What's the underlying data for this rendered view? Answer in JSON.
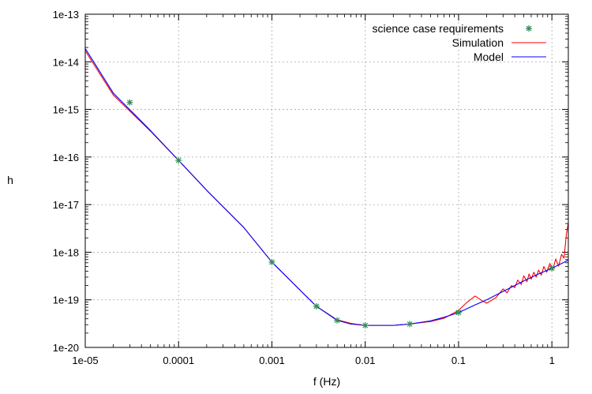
{
  "chart_data": {
    "type": "line",
    "title": "",
    "xlabel": "f (Hz)",
    "ylabel": "h",
    "x_scale": "log",
    "y_scale": "log",
    "xlim": [
      1e-05,
      1.5
    ],
    "ylim": [
      1e-20,
      1e-13
    ],
    "grid": true,
    "legend_position": "top-right",
    "x_ticks": [
      {
        "value": 1e-05,
        "label": "1e-05"
      },
      {
        "value": 0.0001,
        "label": "0.0001"
      },
      {
        "value": 0.001,
        "label": "0.001"
      },
      {
        "value": 0.01,
        "label": "0.01"
      },
      {
        "value": 0.1,
        "label": "0.1"
      },
      {
        "value": 1,
        "label": "1"
      }
    ],
    "y_ticks": [
      {
        "value": 1e-20,
        "label": "1e-20"
      },
      {
        "value": 1e-19,
        "label": "1e-19"
      },
      {
        "value": 1e-18,
        "label": "1e-18"
      },
      {
        "value": 1e-17,
        "label": "1e-17"
      },
      {
        "value": 1e-16,
        "label": "1e-16"
      },
      {
        "value": 1e-15,
        "label": "1e-15"
      },
      {
        "value": 1e-14,
        "label": "1e-14"
      },
      {
        "value": 1e-13,
        "label": "1e-13"
      }
    ],
    "series": [
      {
        "name": "science case requirements",
        "kind": "points",
        "color": "#2e8b57",
        "marker": "asterisk",
        "x": [
          3e-05,
          0.0001,
          0.001,
          0.003,
          0.005,
          0.01,
          0.03,
          0.1,
          1
        ],
        "y": [
          1.4e-15,
          8.5e-17,
          6.2e-19,
          7.3e-20,
          3.7e-20,
          2.9e-20,
          3.1e-20,
          5.4e-20,
          4.6e-19
        ]
      },
      {
        "name": "Simulation",
        "kind": "line",
        "color": "#ff0000",
        "x": [
          1e-05,
          2e-05,
          5e-05,
          0.0001,
          0.0002,
          0.0005,
          0.001,
          0.002,
          0.003,
          0.005,
          0.007,
          0.01,
          0.02,
          0.03,
          0.05,
          0.07,
          0.1,
          0.12,
          0.15,
          0.18,
          0.2,
          0.25,
          0.3,
          0.33,
          0.37,
          0.4,
          0.43,
          0.47,
          0.5,
          0.54,
          0.57,
          0.6,
          0.64,
          0.68,
          0.72,
          0.77,
          0.82,
          0.88,
          0.95,
          1.02,
          1.1,
          1.18,
          1.27,
          1.35,
          1.43,
          1.5
        ],
        "y": [
          1.7e-14,
          2e-15,
          3.5e-16,
          8.5e-17,
          2e-17,
          3.3e-18,
          6.2e-19,
          1.6e-19,
          7.3e-20,
          3.8e-20,
          3.2e-20,
          2.9e-20,
          2.9e-20,
          3.1e-20,
          3.5e-20,
          4.1e-20,
          6e-20,
          8.5e-20,
          1.2e-19,
          9.5e-20,
          8.5e-20,
          1.1e-19,
          1.7e-19,
          1.4e-19,
          2e-19,
          1.8e-19,
          2.6e-19,
          2.1e-19,
          3.2e-19,
          2.4e-19,
          3.5e-19,
          2.7e-19,
          3.8e-19,
          3e-19,
          4.2e-19,
          3.3e-19,
          5e-19,
          3.8e-19,
          5.8e-19,
          4.3e-19,
          7.2e-19,
          5.1e-19,
          9e-19,
          7.5e-19,
          2.4e-18,
          4.2e-18
        ]
      },
      {
        "name": "Model",
        "kind": "line",
        "color": "#0000ff",
        "x": [
          1e-05,
          2e-05,
          5e-05,
          0.0001,
          0.0002,
          0.0005,
          0.001,
          0.002,
          0.003,
          0.005,
          0.007,
          0.01,
          0.02,
          0.03,
          0.05,
          0.07,
          0.1,
          0.15,
          0.2,
          0.3,
          0.5,
          0.7,
          1,
          1.5
        ],
        "y": [
          1.9e-14,
          2.2e-15,
          3.6e-16,
          8.5e-17,
          2e-17,
          3.3e-18,
          6.2e-19,
          1.6e-19,
          7.3e-20,
          3.7e-20,
          3.1e-20,
          2.9e-20,
          2.9e-20,
          3.1e-20,
          3.6e-20,
          4.3e-20,
          5.4e-20,
          7.8e-20,
          1e-19,
          1.5e-19,
          2.5e-19,
          3.4e-19,
          4.6e-19,
          6.8e-19
        ]
      }
    ]
  }
}
